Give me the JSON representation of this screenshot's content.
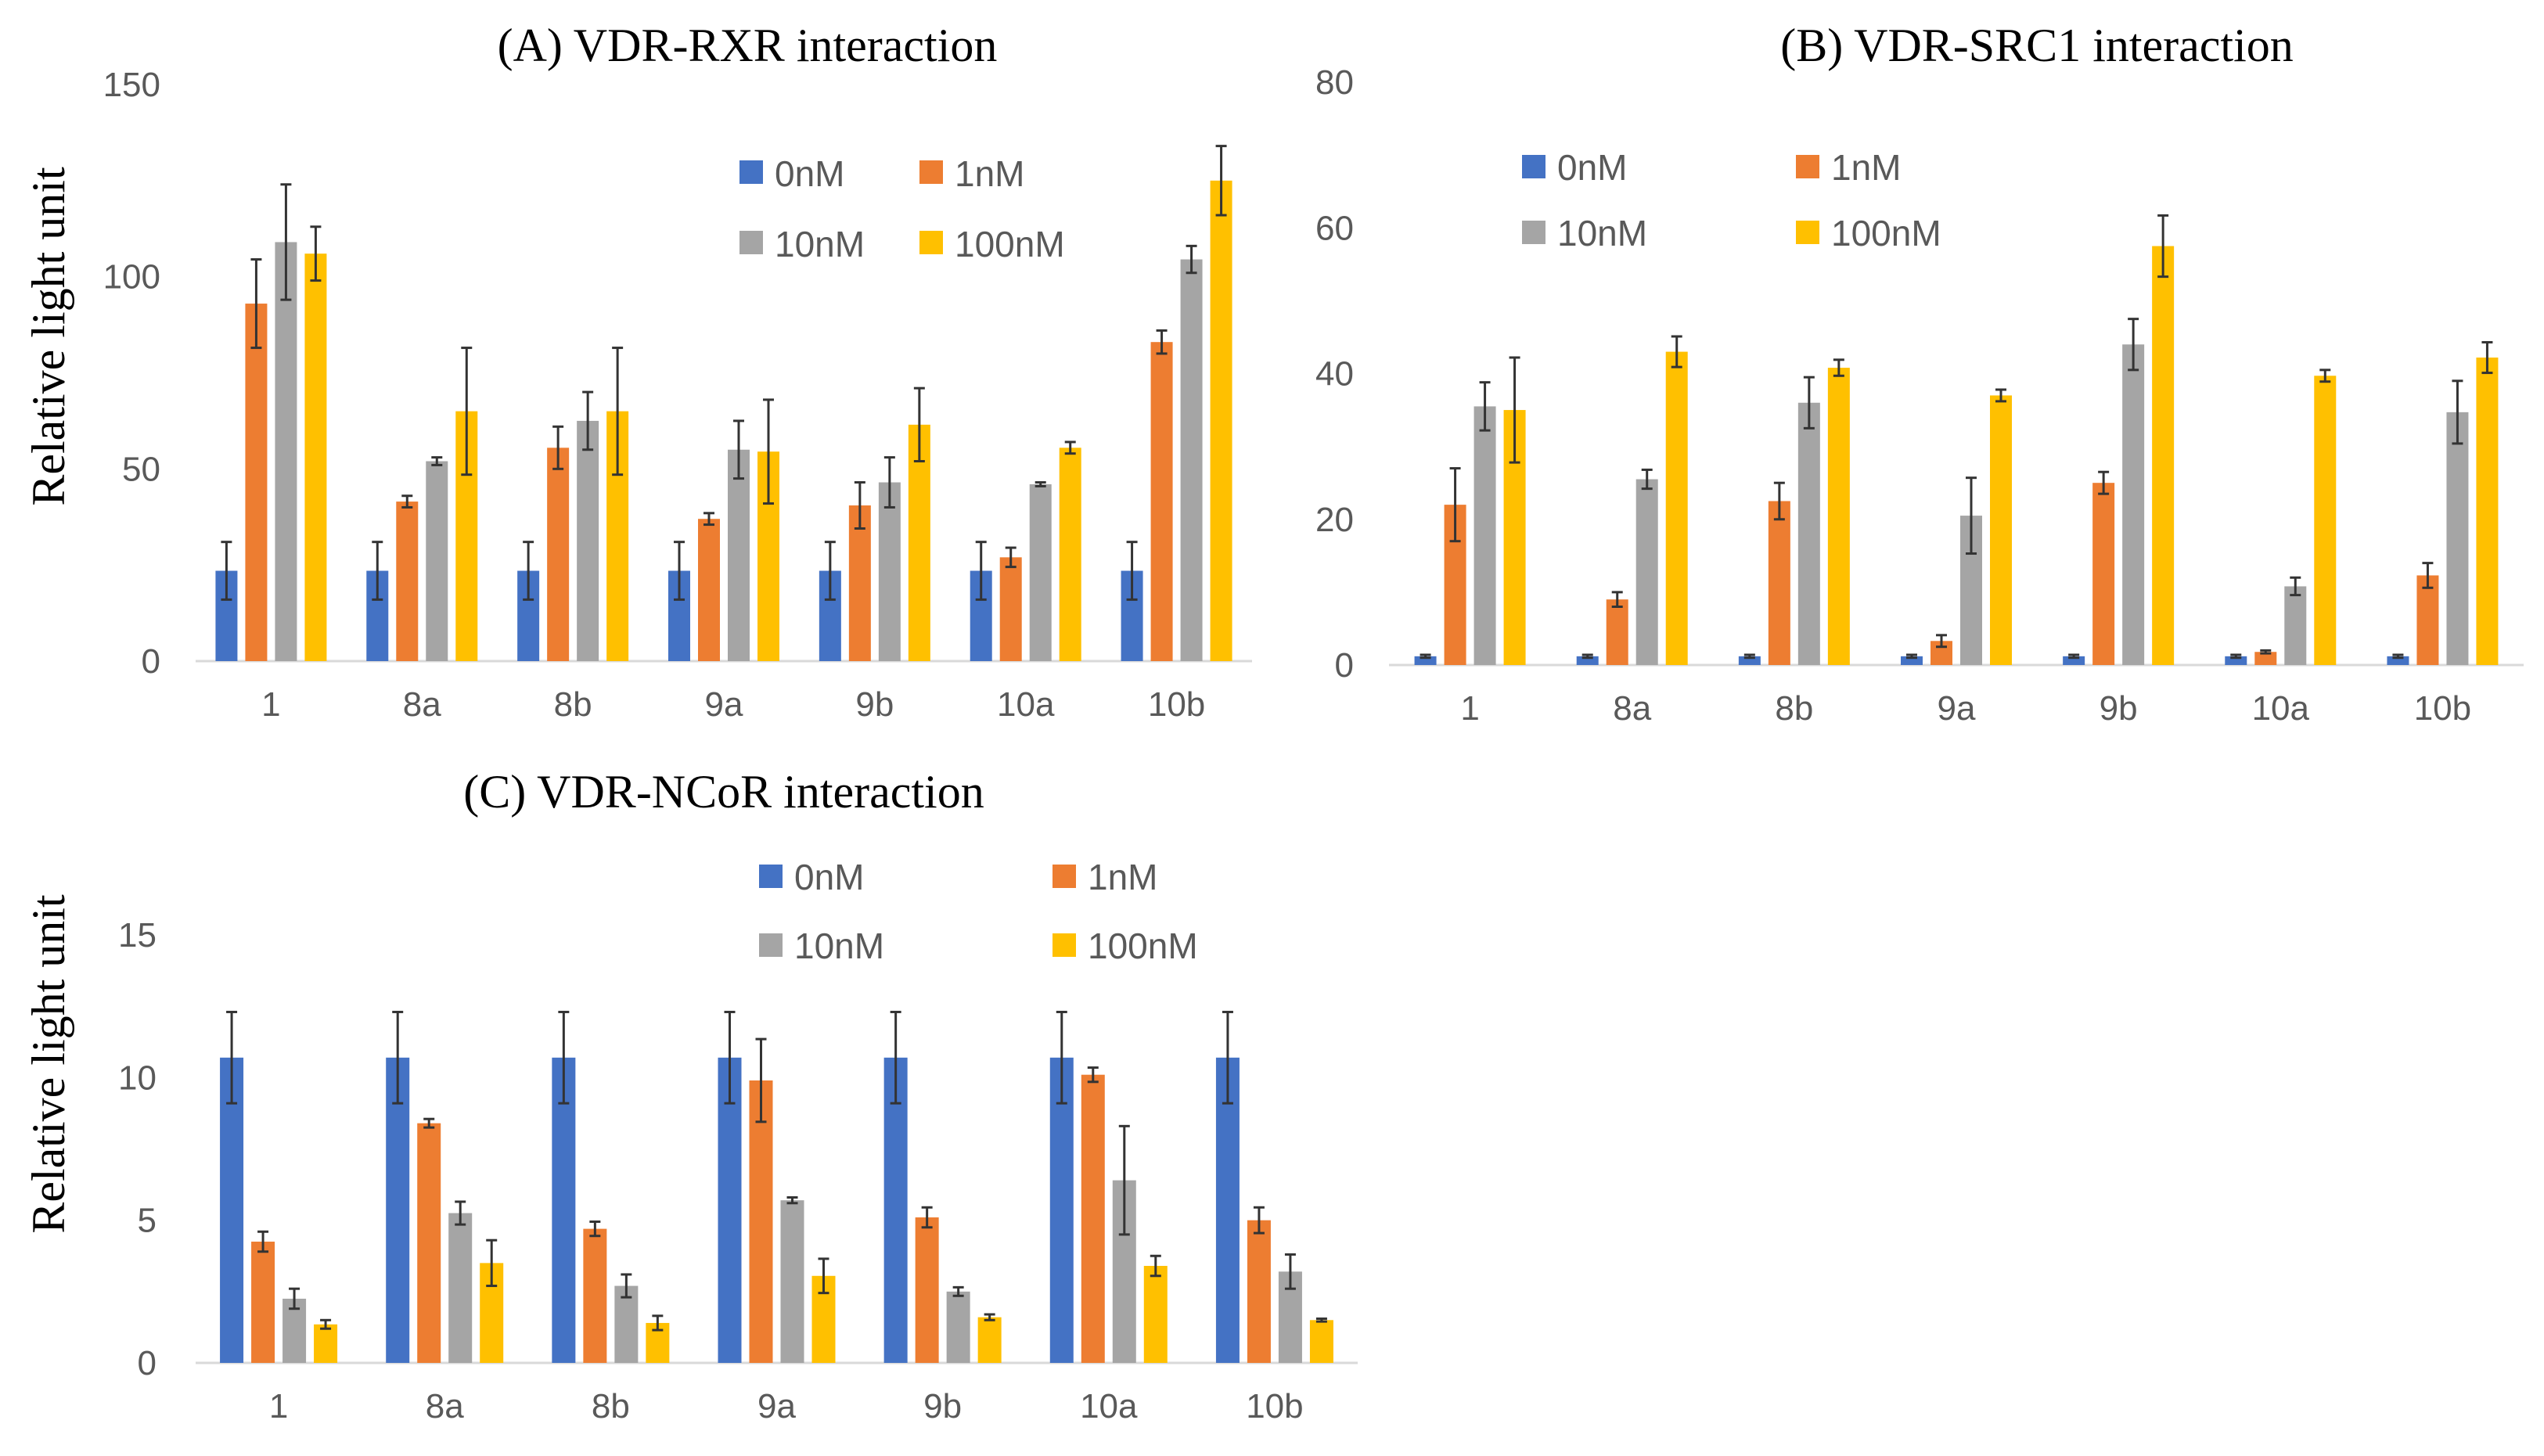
{
  "colors": {
    "0nM": "#4472C4",
    "1nM": "#ED7D31",
    "10nM": "#A5A5A5",
    "100nM": "#FFC000"
  },
  "chart_data": [
    {
      "id": "A",
      "type": "bar",
      "title": "(A) VDR-RXR interaction",
      "ylabel": "Relative light unit",
      "xlabel": "",
      "ylim": [
        0,
        150
      ],
      "yticks": [
        0,
        50,
        100,
        150
      ],
      "categories": [
        "1",
        "8a",
        "8b",
        "9a",
        "9b",
        "10a",
        "10b"
      ],
      "legend": [
        "0nM",
        "1nM",
        "10nM",
        "100nM"
      ],
      "series": [
        {
          "name": "0nM",
          "values": [
            23.5,
            23.5,
            23.5,
            23.5,
            23.5,
            23.5,
            23.5
          ],
          "errors": [
            7.5,
            7.5,
            7.5,
            7.5,
            7.5,
            7.5,
            7.5
          ]
        },
        {
          "name": "1nM",
          "values": [
            93,
            41.5,
            55.5,
            37,
            40.5,
            27,
            83
          ],
          "errors": [
            11.5,
            1.5,
            5.5,
            1.5,
            6,
            2.5,
            3
          ]
        },
        {
          "name": "10nM",
          "values": [
            109,
            52,
            62.5,
            55,
            46.5,
            46,
            104.5
          ],
          "errors": [
            15,
            1,
            7.5,
            7.5,
            6.5,
            0.5,
            3.5
          ]
        },
        {
          "name": "100nM",
          "values": [
            106,
            65,
            65,
            54.5,
            61.5,
            55.5,
            125
          ],
          "errors": [
            7,
            16.5,
            16.5,
            13.5,
            9.5,
            1.5,
            9
          ]
        }
      ]
    },
    {
      "id": "B",
      "type": "bar",
      "title": "(B) VDR-SRC1 interaction",
      "ylabel": "",
      "xlabel": "",
      "ylim": [
        0,
        80
      ],
      "yticks": [
        0,
        20,
        40,
        60,
        80
      ],
      "categories": [
        "1",
        "8a",
        "8b",
        "9a",
        "9b",
        "10a",
        "10b"
      ],
      "legend": [
        "0nM",
        "1nM",
        "10nM",
        "100nM"
      ],
      "series": [
        {
          "name": "0nM",
          "values": [
            1.2,
            1.2,
            1.2,
            1.2,
            1.2,
            1.2,
            1.2
          ],
          "errors": [
            0.2,
            0.2,
            0.2,
            0.2,
            0.2,
            0.2,
            0.2
          ]
        },
        {
          "name": "1nM",
          "values": [
            22,
            9,
            22.5,
            3.3,
            25,
            1.8,
            12.3
          ],
          "errors": [
            5,
            1,
            2.5,
            0.8,
            1.5,
            0.2,
            1.7
          ]
        },
        {
          "name": "10nM",
          "values": [
            35.5,
            25.5,
            36,
            20.5,
            44,
            10.8,
            34.7
          ],
          "errors": [
            3.3,
            1.3,
            3.5,
            5.2,
            3.5,
            1.2,
            4.3
          ]
        },
        {
          "name": "100nM",
          "values": [
            35,
            43,
            40.8,
            37,
            57.5,
            39.7,
            42.2
          ],
          "errors": [
            7.2,
            2.1,
            1.1,
            0.8,
            4.2,
            0.8,
            2.1
          ]
        }
      ]
    },
    {
      "id": "C",
      "type": "bar",
      "title": "(C) VDR-NCoR interaction",
      "ylabel": "Relative light unit",
      "xlabel": "",
      "ylim": [
        0,
        15
      ],
      "yticks": [
        0,
        5,
        10,
        15
      ],
      "categories": [
        "1",
        "8a",
        "8b",
        "9a",
        "9b",
        "10a",
        "10b"
      ],
      "legend": [
        "0nM",
        "1nM",
        "10nM",
        "100nM"
      ],
      "series": [
        {
          "name": "0nM",
          "values": [
            10.7,
            10.7,
            10.7,
            10.7,
            10.7,
            10.7,
            10.7
          ],
          "errors": [
            1.6,
            1.6,
            1.6,
            1.6,
            1.6,
            1.6,
            1.6
          ]
        },
        {
          "name": "1nM",
          "values": [
            4.25,
            8.4,
            4.7,
            9.9,
            5.1,
            10.1,
            5
          ],
          "errors": [
            0.35,
            0.15,
            0.25,
            1.45,
            0.35,
            0.25,
            0.45
          ]
        },
        {
          "name": "10nM",
          "values": [
            2.25,
            5.25,
            2.7,
            5.7,
            2.5,
            6.4,
            3.2
          ],
          "errors": [
            0.35,
            0.4,
            0.4,
            0.1,
            0.15,
            1.9,
            0.6
          ]
        },
        {
          "name": "100nM",
          "values": [
            1.35,
            3.5,
            1.4,
            3.05,
            1.6,
            3.4,
            1.5
          ],
          "errors": [
            0.15,
            0.8,
            0.25,
            0.6,
            0.1,
            0.35,
            0.05
          ]
        }
      ]
    }
  ]
}
